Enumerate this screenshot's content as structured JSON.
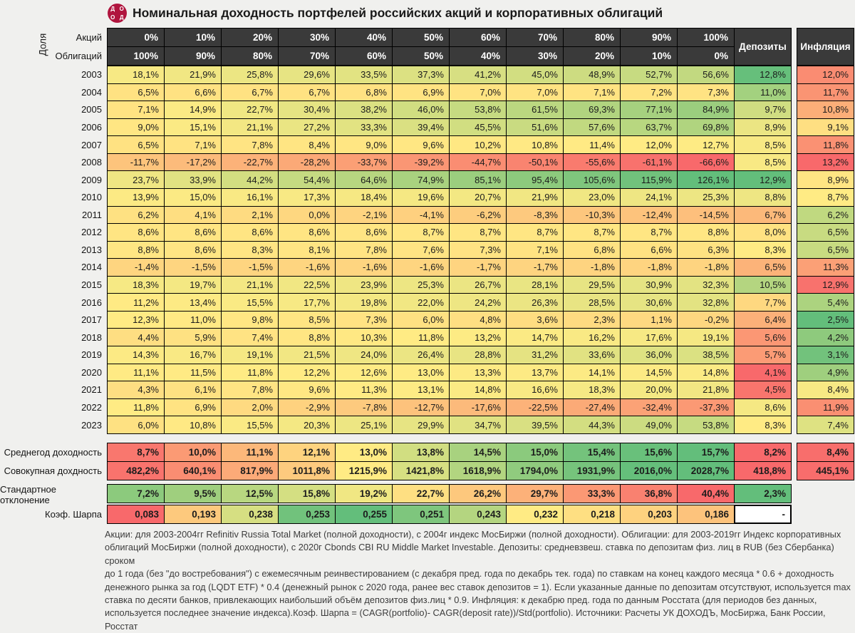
{
  "page_title": "Номинальная доходность портфелей российских акций и корпоративных облигаций",
  "logo": {
    "letters": [
      "Д",
      "О",
      "О",
      "Д"
    ]
  },
  "table": {
    "corner_label": "Доля",
    "stocks_row_label": "Акций",
    "bonds_row_label": "Облигаций",
    "deposits_col_label": "Депозиты",
    "inflation_col_label": "Инфляция"
  },
  "chart_data": {
    "type": "heatmap",
    "title": "Номинальная доходность портфелей российских акций и корпоративных облигаций",
    "stock_weights": [
      "0%",
      "10%",
      "20%",
      "30%",
      "40%",
      "50%",
      "60%",
      "70%",
      "80%",
      "90%",
      "100%"
    ],
    "bond_weights": [
      "100%",
      "90%",
      "80%",
      "70%",
      "60%",
      "50%",
      "40%",
      "30%",
      "20%",
      "10%",
      "0%"
    ],
    "rows": [
      "2003",
      "2004",
      "2005",
      "2006",
      "2007",
      "2008",
      "2009",
      "2010",
      "2011",
      "2012",
      "2013",
      "2014",
      "2015",
      "2016",
      "2017",
      "2018",
      "2019",
      "2020",
      "2021",
      "2022",
      "2023"
    ],
    "matrix": [
      [
        18.1,
        21.9,
        25.8,
        29.6,
        33.5,
        37.3,
        41.2,
        45.0,
        48.9,
        52.7,
        56.6
      ],
      [
        6.5,
        6.6,
        6.7,
        6.7,
        6.8,
        6.9,
        7.0,
        7.0,
        7.1,
        7.2,
        7.3
      ],
      [
        7.1,
        14.9,
        22.7,
        30.4,
        38.2,
        46.0,
        53.8,
        61.5,
        69.3,
        77.1,
        84.9
      ],
      [
        9.0,
        15.1,
        21.1,
        27.2,
        33.3,
        39.4,
        45.5,
        51.6,
        57.6,
        63.7,
        69.8
      ],
      [
        6.5,
        7.1,
        7.8,
        8.4,
        9.0,
        9.6,
        10.2,
        10.8,
        11.4,
        12.0,
        12.7
      ],
      [
        -11.7,
        -17.2,
        -22.7,
        -28.2,
        -33.7,
        -39.2,
        -44.7,
        -50.1,
        -55.6,
        -61.1,
        -66.6
      ],
      [
        23.7,
        33.9,
        44.2,
        54.4,
        64.6,
        74.9,
        85.1,
        95.4,
        105.6,
        115.9,
        126.1
      ],
      [
        13.9,
        15.0,
        16.1,
        17.3,
        18.4,
        19.6,
        20.7,
        21.9,
        23.0,
        24.1,
        25.3
      ],
      [
        6.2,
        4.1,
        2.1,
        0.0,
        -2.1,
        -4.1,
        -6.2,
        -8.3,
        -10.3,
        -12.4,
        -14.5
      ],
      [
        8.6,
        8.6,
        8.6,
        8.6,
        8.6,
        8.7,
        8.7,
        8.7,
        8.7,
        8.7,
        8.8
      ],
      [
        8.8,
        8.6,
        8.3,
        8.1,
        7.8,
        7.6,
        7.3,
        7.1,
        6.8,
        6.6,
        6.3
      ],
      [
        -1.4,
        -1.5,
        -1.5,
        -1.6,
        -1.6,
        -1.6,
        -1.7,
        -1.7,
        -1.8,
        -1.8,
        -1.8
      ],
      [
        18.3,
        19.7,
        21.1,
        22.5,
        23.9,
        25.3,
        26.7,
        28.1,
        29.5,
        30.9,
        32.3
      ],
      [
        11.2,
        13.4,
        15.5,
        17.7,
        19.8,
        22.0,
        24.2,
        26.3,
        28.5,
        30.6,
        32.8
      ],
      [
        12.3,
        11.0,
        9.8,
        8.5,
        7.3,
        6.0,
        4.8,
        3.6,
        2.3,
        1.1,
        -0.2
      ],
      [
        4.4,
        5.9,
        7.4,
        8.8,
        10.3,
        11.8,
        13.2,
        14.7,
        16.2,
        17.6,
        19.1
      ],
      [
        14.3,
        16.7,
        19.1,
        21.5,
        24.0,
        26.4,
        28.8,
        31.2,
        33.6,
        36.0,
        38.5
      ],
      [
        11.1,
        11.5,
        11.8,
        12.2,
        12.6,
        13.0,
        13.3,
        13.7,
        14.1,
        14.5,
        14.8
      ],
      [
        4.3,
        6.1,
        7.8,
        9.6,
        11.3,
        13.1,
        14.8,
        16.6,
        18.3,
        20.0,
        21.8
      ],
      [
        11.8,
        6.9,
        2.0,
        -2.9,
        -7.8,
        -12.7,
        -17.6,
        -22.5,
        -27.4,
        -32.4,
        -37.3
      ],
      [
        6.0,
        10.8,
        15.5,
        20.3,
        25.1,
        29.9,
        34.7,
        39.5,
        44.3,
        49.0,
        53.8
      ]
    ],
    "deposits": [
      12.8,
      11.0,
      9.7,
      8.9,
      8.5,
      8.5,
      12.9,
      8.8,
      6.7,
      8.0,
      8.3,
      6.5,
      10.5,
      7.7,
      6.4,
      5.6,
      5.7,
      4.1,
      4.5,
      8.6,
      8.3
    ],
    "inflation": [
      12.0,
      11.7,
      10.8,
      9.1,
      11.8,
      13.2,
      8.9,
      8.7,
      6.2,
      6.5,
      6.5,
      11.3,
      12.9,
      5.4,
      2.5,
      4.2,
      3.1,
      4.9,
      8.4,
      11.9,
      7.4
    ],
    "summary_rows": [
      {
        "label": "Среднегод доходность",
        "format": "pct",
        "invert": false,
        "group": 0,
        "values": [
          8.7,
          10.0,
          11.1,
          12.1,
          13.0,
          13.8,
          14.5,
          15.0,
          15.4,
          15.6,
          15.7
        ],
        "deposit": 8.2,
        "inflation": 8.4
      },
      {
        "label": "Совокупная дохдность",
        "format": "pct",
        "invert": false,
        "group": 0,
        "values": [
          482.2,
          640.1,
          817.9,
          1011.8,
          1215.9,
          1421.8,
          1618.9,
          1794.0,
          1931.9,
          2016.0,
          2028.7
        ],
        "deposit": 418.8,
        "inflation": 445.1
      },
      {
        "label": "Стандартное отклонение",
        "format": "pct",
        "invert": true,
        "group": 1,
        "values": [
          7.2,
          9.5,
          12.5,
          15.8,
          19.2,
          22.7,
          26.2,
          29.7,
          33.3,
          36.8,
          40.4
        ],
        "deposit": 2.3,
        "inflation": null
      },
      {
        "label": "Коэф. Шарпа",
        "format": "num3",
        "invert": false,
        "group": 1,
        "values": [
          0.083,
          0.193,
          0.238,
          0.253,
          0.255,
          0.251,
          0.243,
          0.232,
          0.218,
          0.203,
          0.186
        ],
        "deposit": "-",
        "inflation": null
      }
    ],
    "palette": {
      "low": "#F8696B",
      "mid": "#FFEB84",
      "high": "#63BE7B"
    },
    "legend_position": "none",
    "grid": true
  },
  "footnote_lines": [
    "Акции: для 2003-2004гг Refinitiv Russia Total Market (полной доходности), с 2004г индекс МосБиржи (полной доходности). Облигации: для 2003-2019гг Индекс корпоративных",
    "облигаций МосБиржи (полной доходности), с 2020г Cbonds CBI RU Middle Market Investable. Депозиты: средневзвеш. ставка по  депозитам физ. лиц в RUB (без Сбербанка) сроком",
    "до 1 года (без \"до востребования\") с ежемесячным реинвестированием (с декабря пред. года по декабрь тек. года) по ставкам на конец каждого месяца * 0.6 + доходность",
    "денежного рынка за год (LQDT ETF) * 0.4 (денежный рынок с 2020 года, ранее вес ставок депозитов = 1). Если указанные данные по депозитам отсутствуют, используется max",
    "ставка по десяти банков, привлекающих наибольший объём депозитов физ.лиц * 0.9. Инфляция: к декабрю пред. года по данным Росстата (для периодов без данных,",
    "используется последнее значение индекса).Коэф. Шарпа = (CAGR(portfolio)- CAGR(deposit rate))/Std(portfolio). Источники: Расчеты УК ДОХОДЪ, МосБиржа, Банк России, Росстат"
  ]
}
